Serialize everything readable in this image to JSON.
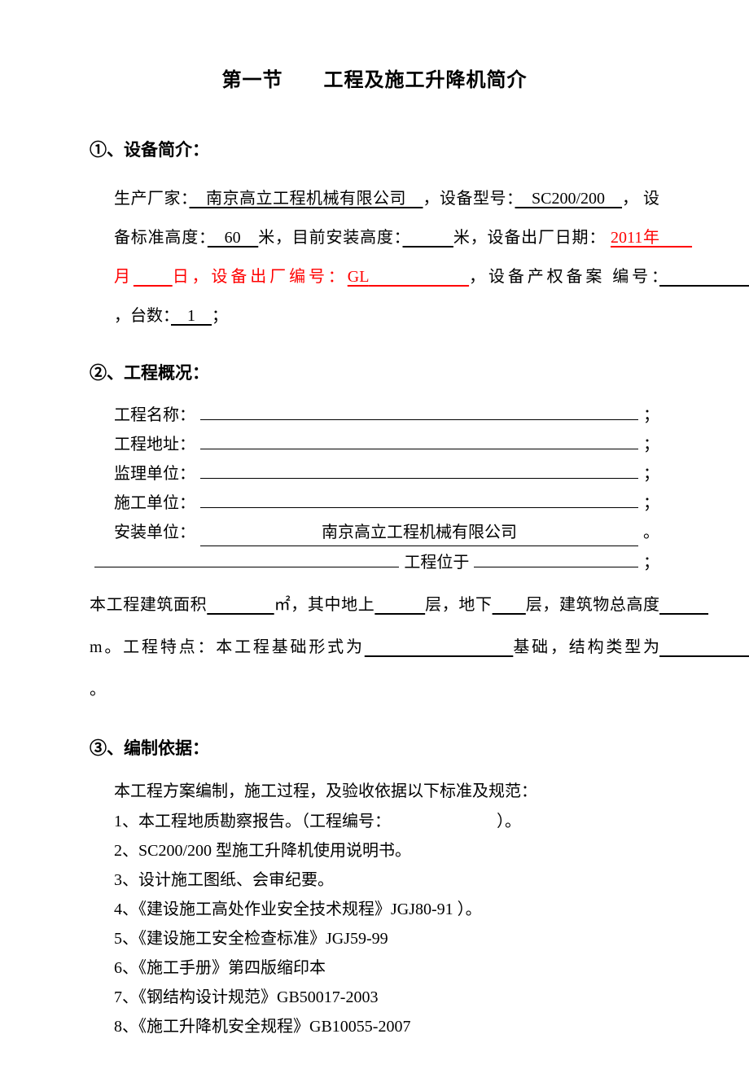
{
  "title": "第一节　　工程及施工升降机简介",
  "sec1": {
    "heading": "①、设备简介：",
    "manufacturer_label": "生产厂家：",
    "manufacturer": "　南京高立工程机械有限公司　",
    "model_label": "，设备型号：",
    "model": "　SC200/200　",
    "model_end": "，",
    "std_height_label": "设备标准高度：",
    "std_height": "　60　",
    "std_height_unit": "米，目前安装高度：",
    "cur_height": "　　　",
    "cur_height_unit": "米，设备出厂日期：",
    "date_year": "2011年",
    "date_month_blank": "　　",
    "date_month_char": "月",
    "date_day_blank": "　　",
    "date_day_char": "日，设备出厂编号：",
    "serial_prefix": "GL",
    "serial_blank": "　　　　　",
    "serial_end": "，设备产权备案",
    "record_label": "编号：",
    "record_blank": "　　　　　　",
    "record_end": "，台数：",
    "count": "　1　",
    "count_end": "；"
  },
  "sec2": {
    "heading": "②、工程概况：",
    "name_label": "工程名称：",
    "addr_label": "工程地址：",
    "supervisor_label": "监理单位：",
    "builder_label": "施工单位：",
    "installer_label": "安装单位：",
    "installer": "南京高立工程机械有限公司",
    "loc_mid": "工程位于",
    "body_1": "本工程建筑面积",
    "body_2": "㎡，其中地上",
    "body_3": "层，地下",
    "body_4": "层，建筑物总高度",
    "body_5": "m。工程特点：本工程基础形式为",
    "body_6": "基础，结构类型为",
    "body_7": "。",
    "semi": "；",
    "period": "。"
  },
  "sec3": {
    "heading": "③、编制依据：",
    "intro": "本工程方案编制，施工过程，及验收依据以下标准及规范：",
    "items": [
      "1、本工程地质勘察报告。（工程编号：　　　　　　　）。",
      "2、SC200/200 型施工升降机使用说明书。",
      "3、设计施工图纸、会审纪要。",
      "4、《建设施工高处作业安全技术规程》JGJ80-91 ）。",
      "5、《建设施工安全检查标准》JGJ59-99",
      "6、《施工手册》第四版缩印本",
      "7、《钢结构设计规范》GB50017-2003",
      "8、《施工升降机安全规程》GB10055-2007"
    ]
  }
}
